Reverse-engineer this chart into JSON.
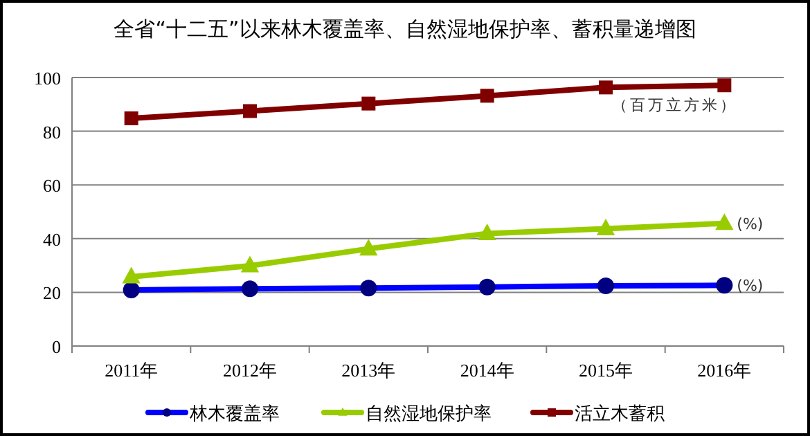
{
  "chart_data": {
    "type": "line",
    "title": "全省“十二五”以来林木覆盖率、自然湿地保护率、蓄积量递增图",
    "categories": [
      "2011年",
      "2012年",
      "2013年",
      "2014年",
      "2015年",
      "2016年"
    ],
    "series": [
      {
        "name": "林木覆盖率",
        "color": "#0000ff",
        "marker": "circle",
        "values": [
          20.9,
          21.3,
          21.6,
          22.0,
          22.4,
          22.6
        ]
      },
      {
        "name": "自然湿地保护率",
        "color": "#99cc00",
        "marker": "triangle",
        "values": [
          25.8,
          29.9,
          36.2,
          41.9,
          43.7,
          45.7
        ]
      },
      {
        "name": "活立木蓄积",
        "color": "#800000",
        "marker": "square",
        "values": [
          84.8,
          87.5,
          90.3,
          93.2,
          96.3,
          97.1
        ]
      }
    ],
    "ylim": [
      0,
      100
    ],
    "yticks": [
      0,
      20,
      40,
      60,
      80,
      100
    ],
    "grid": "y",
    "legend": "bottom",
    "line_style": "solid",
    "annotations": [
      {
        "text": "（百万立方米）",
        "x": "2016年",
        "y": 97.1
      },
      {
        "text": "(%)",
        "x": "2016年",
        "y": 45.7
      },
      {
        "text": "(%)",
        "x": "2016年",
        "y": 22.6
      }
    ]
  }
}
